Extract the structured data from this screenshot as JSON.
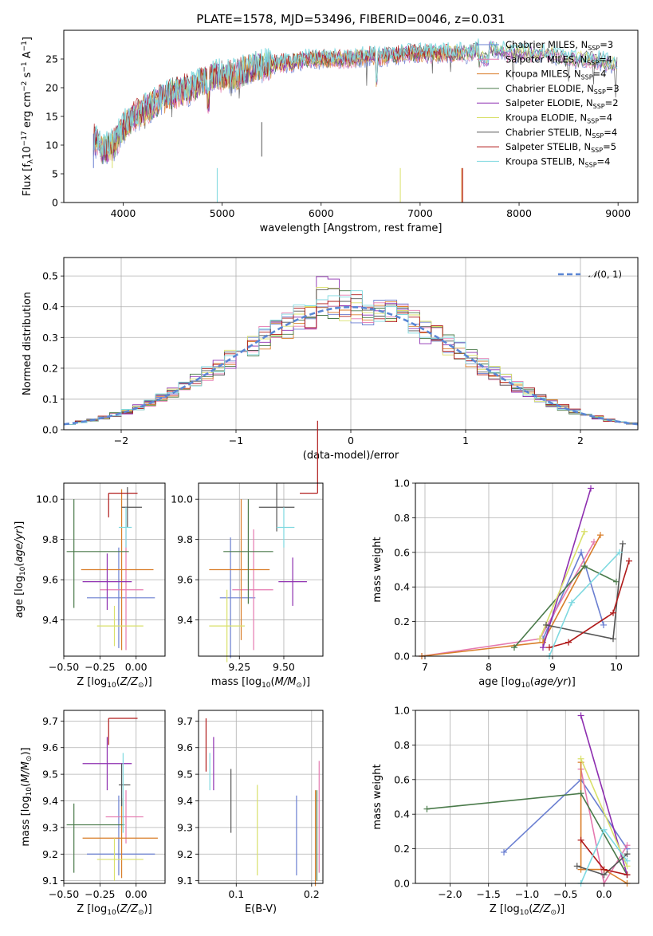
{
  "figure": {
    "title": "PLATE=1578, MJD=53496, FIBERID=0046, z=0.031"
  },
  "colors": [
    "#6a7fd1",
    "#e57ab0",
    "#d97e2a",
    "#4a7a4a",
    "#8e2fb0",
    "#d9e06a",
    "#555555",
    "#b01a1a",
    "#7fd9e0"
  ],
  "chart_data": [
    {
      "id": "spectrum",
      "type": "line",
      "xlabel": "wavelength [Angstrom, rest frame]",
      "ylabel": "Flux [f_λ 10^-17 erg cm^-2 s^-1 A^-1]",
      "xlim": [
        3400,
        9200
      ],
      "ylim": [
        0,
        30
      ],
      "xticks": [
        4000,
        5000,
        6000,
        7000,
        8000,
        9000
      ],
      "yticks": [
        0,
        5,
        10,
        15,
        20,
        25
      ],
      "grid": false,
      "legend_position": "top-right",
      "series": [
        {
          "name": "Chabrier MILES, N_SSP=3"
        },
        {
          "name": "Salpeter MILES, N_SSP=4"
        },
        {
          "name": "Kroupa MILES, N_SSP=4"
        },
        {
          "name": "Chabrier ELODIE, N_SSP=3"
        },
        {
          "name": "Salpeter ELODIE, N_SSP=2"
        },
        {
          "name": "Kroupa ELODIE, N_SSP=4"
        },
        {
          "name": "Chabrier STELIB, N_SSP=4"
        },
        {
          "name": "Salpeter STELIB, N_SSP=5"
        },
        {
          "name": "Kroupa STELIB, N_SSP=4"
        }
      ],
      "continuum": {
        "x": [
          3700,
          3800,
          3900,
          4000,
          4100,
          4300,
          4500,
          4700,
          4900,
          5100,
          5300,
          5500,
          5700,
          5900,
          6100,
          6300,
          6500,
          6700,
          6900,
          7100,
          7300,
          7500,
          7600,
          7700,
          7900,
          8100,
          8300,
          8500,
          8700,
          9000
        ],
        "y": [
          11,
          9,
          10,
          13,
          15,
          17,
          19,
          20,
          22,
          22,
          23.5,
          24,
          24.5,
          25,
          25,
          25,
          25.5,
          25.5,
          26,
          26,
          26,
          26,
          27,
          27,
          26,
          26,
          26,
          25,
          25,
          24
        ]
      }
    },
    {
      "id": "residuals",
      "type": "bar",
      "xlabel": "(data-model)/error",
      "ylabel": "Normed distribution",
      "xlim": [
        -2.5,
        2.5
      ],
      "ylim": [
        0,
        0.56
      ],
      "xticks": [
        -2,
        -1,
        0,
        1,
        2
      ],
      "yticks": [
        0.0,
        0.1,
        0.2,
        0.3,
        0.4,
        0.5
      ],
      "grid": true,
      "legend_position": "top-right",
      "legend": "N(0,1)",
      "bin_width": 0.1,
      "reference_curve": "normal(0,1)",
      "peak_values": [
        0.4,
        0.43,
        0.41,
        0.39,
        0.53,
        0.5,
        0.46,
        0.42,
        0.44
      ]
    },
    {
      "id": "age-vs-Z",
      "type": "scatter",
      "xlabel": "Z [log10(Z/Z⊙)]",
      "ylabel": "age  [log10(age/yr)]",
      "xlim": [
        -0.5,
        0.2
      ],
      "ylim": [
        9.22,
        10.08
      ],
      "xticks": [
        -0.5,
        -0.25,
        0.0
      ],
      "yticks": [
        9.4,
        9.6,
        9.8,
        10.0
      ],
      "grid": true,
      "points": [
        {
          "x": -0.12,
          "xerr": [
            0.22,
            0.25
          ],
          "y": 9.51,
          "yerr": [
            0.25,
            0.25
          ]
        },
        {
          "x": -0.07,
          "xerr": [
            0.18,
            0.12
          ],
          "y": 9.55,
          "yerr": [
            0.3,
            0.3
          ]
        },
        {
          "x": -0.1,
          "xerr": [
            0.28,
            0.22
          ],
          "y": 9.65,
          "yerr": [
            0.4,
            0.4
          ]
        },
        {
          "x": -0.43,
          "xerr": [
            0.05,
            0.38
          ],
          "y": 9.74,
          "yerr": [
            0.28,
            0.26
          ]
        },
        {
          "x": -0.2,
          "xerr": [
            0.17,
            0.17
          ],
          "y": 9.59,
          "yerr": [
            0.14,
            0.14
          ]
        },
        {
          "x": -0.15,
          "xerr": [
            0.12,
            0.2
          ],
          "y": 9.37,
          "yerr": [
            0.1,
            0.1
          ]
        },
        {
          "x": -0.06,
          "xerr": [
            0.04,
            0.1
          ],
          "y": 9.96,
          "yerr": [
            0.1,
            0.1
          ]
        },
        {
          "x": -0.19,
          "xerr": [
            0.0,
            0.2
          ],
          "y": 10.03,
          "yerr": [
            0.12,
            0.0
          ]
        },
        {
          "x": -0.07,
          "xerr": [
            0.05,
            0.04
          ],
          "y": 9.86,
          "yerr": [
            0.1,
            0.1
          ]
        }
      ]
    },
    {
      "id": "age-vs-mass",
      "type": "scatter",
      "xlabel": "mass [log10(M/M⊙)]",
      "ylabel": "",
      "xlim": [
        9.02,
        9.72
      ],
      "ylim": [
        9.22,
        10.08
      ],
      "xticks": [
        9.25,
        9.5
      ],
      "yticks": [
        9.4,
        9.6,
        9.8,
        10.0
      ],
      "grid": true,
      "points": [
        {
          "x": 9.2,
          "xerr": [
            0.06,
            0.14
          ],
          "y": 9.51,
          "yerr": [
            0.3,
            0.3
          ]
        },
        {
          "x": 9.33,
          "xerr": [
            0.12,
            0.11
          ],
          "y": 9.55,
          "yerr": [
            0.3,
            0.3
          ]
        },
        {
          "x": 9.26,
          "xerr": [
            0.18,
            0.16
          ],
          "y": 9.65,
          "yerr": [
            0.35,
            0.35
          ]
        },
        {
          "x": 9.3,
          "xerr": [
            0.14,
            0.14
          ],
          "y": 9.74,
          "yerr": [
            0.26,
            0.26
          ]
        },
        {
          "x": 9.55,
          "xerr": [
            0.08,
            0.08
          ],
          "y": 9.59,
          "yerr": [
            0.12,
            0.12
          ]
        },
        {
          "x": 9.18,
          "xerr": [
            0.1,
            0.1
          ],
          "y": 9.37,
          "yerr": [
            0.18,
            0.18
          ]
        },
        {
          "x": 9.46,
          "xerr": [
            0.1,
            0.1
          ],
          "y": 9.96,
          "yerr": [
            0.12,
            0.12
          ]
        },
        {
          "x": 9.69,
          "xerr": [
            0.1,
            0.0
          ],
          "y": 10.03,
          "yerr": [
            0.0,
            0.36
          ]
        },
        {
          "x": 9.5,
          "xerr": [
            0.04,
            0.06
          ],
          "y": 9.86,
          "yerr": [
            0.1,
            0.1
          ]
        }
      ]
    },
    {
      "id": "massweight-vs-age",
      "type": "line",
      "xlabel": "age  [log10(age/yr)]",
      "ylabel": "mass weight",
      "xlim": [
        6.85,
        10.35
      ],
      "ylim": [
        0,
        1
      ],
      "xticks": [
        7,
        8,
        9,
        10
      ],
      "yticks": [
        0.0,
        0.2,
        0.4,
        0.6,
        0.8,
        1.0
      ],
      "grid": true,
      "series": [
        {
          "x": [
            9.8,
            9.45,
            8.85
          ],
          "y": [
            0.18,
            0.6,
            0.1
          ]
        },
        {
          "x": [
            6.95,
            8.8,
            9.65
          ],
          "y": [
            0.0,
            0.1,
            0.66
          ]
        },
        {
          "x": [
            6.95,
            8.85,
            9.75
          ],
          "y": [
            0.0,
            0.08,
            0.7
          ]
        },
        {
          "x": [
            8.4,
            9.5,
            10.0
          ],
          "y": [
            0.05,
            0.52,
            0.43
          ]
        },
        {
          "x": [
            8.85,
            9.6
          ],
          "y": [
            0.05,
            0.97
          ]
        },
        {
          "x": [
            8.8,
            9.5
          ],
          "y": [
            0.1,
            0.72
          ]
        },
        {
          "x": [
            8.9,
            9.95,
            10.1
          ],
          "y": [
            0.18,
            0.1,
            0.65
          ]
        },
        {
          "x": [
            8.95,
            9.25,
            9.95,
            10.2
          ],
          "y": [
            0.05,
            0.08,
            0.25,
            0.55
          ]
        },
        {
          "x": [
            8.95,
            9.3,
            10.05
          ],
          "y": [
            0.0,
            0.31,
            0.6
          ]
        }
      ]
    },
    {
      "id": "mass-vs-Z",
      "type": "scatter",
      "xlabel": "Z [log10(Z/Z⊙)]",
      "ylabel": "mass [log10(M/M⊙)]",
      "xlim": [
        -0.5,
        0.2
      ],
      "ylim": [
        9.09,
        9.74
      ],
      "xticks": [
        -0.5,
        -0.25,
        0.0
      ],
      "yticks": [
        9.1,
        9.2,
        9.3,
        9.4,
        9.5,
        9.6,
        9.7
      ],
      "grid": true,
      "points": [
        {
          "x": -0.12,
          "xerr": [
            0.22,
            0.25
          ],
          "y": 9.2,
          "yerr": [
            0.08,
            0.22
          ]
        },
        {
          "x": -0.07,
          "xerr": [
            0.14,
            0.12
          ],
          "y": 9.34,
          "yerr": [
            0.1,
            0.1
          ]
        },
        {
          "x": -0.1,
          "xerr": [
            0.27,
            0.25
          ],
          "y": 9.26,
          "yerr": [
            0.15,
            0.15
          ]
        },
        {
          "x": -0.43,
          "xerr": [
            0.05,
            0.35
          ],
          "y": 9.31,
          "yerr": [
            0.18,
            0.08
          ]
        },
        {
          "x": -0.2,
          "xerr": [
            0.17,
            0.17
          ],
          "y": 9.54,
          "yerr": [
            0.1,
            0.1
          ]
        },
        {
          "x": -0.15,
          "xerr": [
            0.12,
            0.2
          ],
          "y": 9.18,
          "yerr": [
            0.08,
            0.08
          ]
        },
        {
          "x": -0.1,
          "xerr": [
            0.02,
            0.06
          ],
          "y": 9.46,
          "yerr": [
            0.08,
            0.08
          ]
        },
        {
          "x": -0.19,
          "xerr": [
            0.0,
            0.2
          ],
          "y": 9.71,
          "yerr": [
            0.1,
            0.0
          ]
        },
        {
          "x": -0.09,
          "xerr": [
            0.0,
            0.0
          ],
          "y": 9.43,
          "yerr": [
            0.15,
            0.15
          ]
        }
      ]
    },
    {
      "id": "mass-vs-EBV",
      "type": "scatter",
      "xlabel": "E(B-V)",
      "ylabel": "",
      "xlim": [
        0.05,
        0.215
      ],
      "ylim": [
        9.09,
        9.74
      ],
      "xticks": [
        0.1,
        0.2
      ],
      "yticks": [
        9.1,
        9.2,
        9.3,
        9.4,
        9.5,
        9.6,
        9.7
      ],
      "grid": true,
      "points": [
        {
          "x": 0.18,
          "y": 9.27,
          "yerr": [
            0.15,
            0.15
          ]
        },
        {
          "x": 0.21,
          "y": 9.34,
          "yerr": [
            0.21,
            0.21
          ]
        },
        {
          "x": 0.205,
          "y": 9.26,
          "yerr": [
            0.18,
            0.18
          ]
        },
        {
          "x": 0.207,
          "y": 9.27,
          "yerr": [
            0.17,
            0.17
          ]
        },
        {
          "x": 0.07,
          "y": 9.54,
          "yerr": [
            0.1,
            0.1
          ]
        },
        {
          "x": 0.128,
          "y": 9.29,
          "yerr": [
            0.17,
            0.17
          ]
        },
        {
          "x": 0.093,
          "y": 9.4,
          "yerr": [
            0.12,
            0.12
          ]
        },
        {
          "x": 0.06,
          "y": 9.61,
          "yerr": [
            0.1,
            0.1
          ]
        },
        {
          "x": 0.065,
          "y": 9.51,
          "yerr": [
            0.07,
            0.07
          ]
        }
      ]
    },
    {
      "id": "massweight-vs-Z",
      "type": "line",
      "xlabel": "Z [log10(Z/Z⊙)]",
      "ylabel": "mass weight",
      "xlim": [
        -2.45,
        0.45
      ],
      "ylim": [
        0,
        1
      ],
      "xticks": [
        -2.0,
        -1.5,
        -1.0,
        -0.5,
        0.0
      ],
      "yticks": [
        0.0,
        0.2,
        0.4,
        0.6,
        0.8,
        1.0
      ],
      "grid": true,
      "series": [
        {
          "x": [
            -1.3,
            -0.3,
            0.3
          ],
          "y": [
            0.18,
            0.6,
            0.2
          ]
        },
        {
          "x": [
            -0.3,
            0.0,
            0.3
          ],
          "y": [
            0.66,
            0.0,
            0.22
          ]
        },
        {
          "x": [
            -0.3,
            -0.3,
            0.0,
            0.3
          ],
          "y": [
            0.7,
            0.08,
            0.08,
            0.0
          ]
        },
        {
          "x": [
            -2.3,
            -0.3,
            0.3
          ],
          "y": [
            0.43,
            0.52,
            0.05
          ]
        },
        {
          "x": [
            -0.3,
            0.3
          ],
          "y": [
            0.97,
            0.05
          ]
        },
        {
          "x": [
            -0.3,
            0.3
          ],
          "y": [
            0.72,
            0.1
          ]
        },
        {
          "x": [
            -0.35,
            0.0,
            0.3
          ],
          "y": [
            0.1,
            0.05,
            0.17
          ]
        },
        {
          "x": [
            -0.3,
            0.0,
            0.3
          ],
          "y": [
            0.25,
            0.08,
            0.05
          ]
        },
        {
          "x": [
            -0.3,
            0.0,
            0.3
          ],
          "y": [
            0.0,
            0.31,
            0.13
          ]
        }
      ]
    }
  ]
}
